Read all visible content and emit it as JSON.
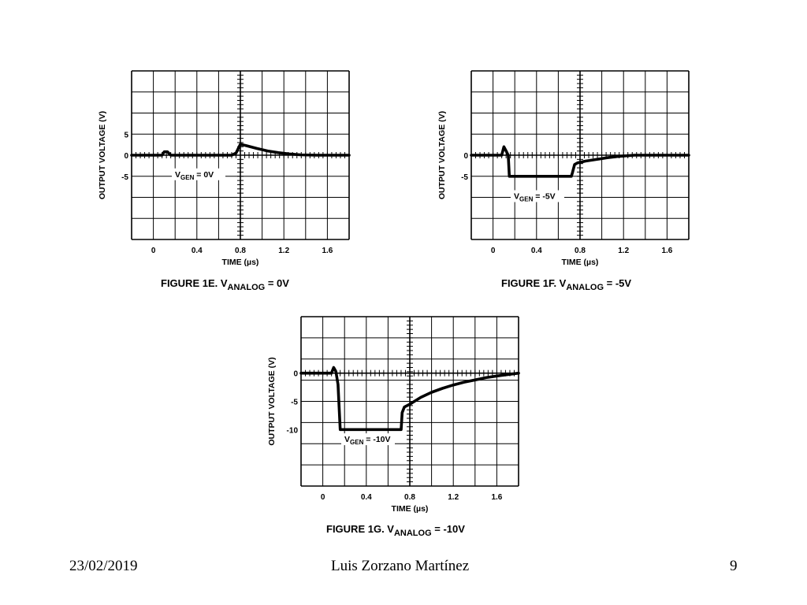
{
  "footer": {
    "date": "23/02/2019",
    "author": "Luis Zorzano Martínez",
    "page_number": "9"
  },
  "chart_data": [
    {
      "type": "line",
      "caption": {
        "prefix": "FIGURE 1E.  V",
        "sub": "ANALOG",
        "suffix": " = 0V"
      },
      "annotation": {
        "main": "V",
        "sub": "GEN",
        "suffix": " = 0V"
      },
      "xlabel": "TIME (µs)",
      "ylabel": "OUTPUT VOLTAGE (V)",
      "x_ticks": [
        "0",
        "0.4",
        "0.8",
        "1.2",
        "1.6"
      ],
      "y_ticks": [
        {
          "value": 5,
          "label": "5"
        },
        {
          "value": 0,
          "label": "0"
        },
        {
          "value": -5,
          "label": "-5"
        }
      ],
      "xlim": [
        -0.2,
        1.8
      ],
      "ylim": [
        -20,
        20
      ],
      "grid": true,
      "series": [
        {
          "x": [
            -0.2,
            0.08,
            0.1,
            0.13,
            0.16,
            0.72,
            0.76,
            0.8,
            0.85,
            0.95,
            1.05,
            1.15,
            1.25,
            1.35,
            1.5,
            1.8
          ],
          "y": [
            0,
            0,
            0.8,
            0.8,
            0,
            0,
            0.5,
            2.6,
            2.3,
            1.6,
            1.0,
            0.6,
            0.3,
            0.1,
            0,
            0
          ]
        }
      ]
    },
    {
      "type": "line",
      "caption": {
        "prefix": "FIGURE 1F.  V",
        "sub": "ANALOG",
        "suffix": " = -5V"
      },
      "annotation": {
        "main": "V",
        "sub": "GEN",
        "suffix": " = -5V"
      },
      "xlabel": "TIME (µs)",
      "ylabel": "OUTPUT VOLTAGE (V)",
      "x_ticks": [
        "0",
        "0.4",
        "0.8",
        "1.2",
        "1.6"
      ],
      "y_ticks": [
        {
          "value": 0,
          "label": "0"
        },
        {
          "value": -5,
          "label": "-5"
        }
      ],
      "xlim": [
        -0.2,
        1.8
      ],
      "ylim": [
        -20,
        20
      ],
      "grid": true,
      "series": [
        {
          "x": [
            -0.2,
            0.08,
            0.1,
            0.12,
            0.14,
            0.15,
            0.72,
            0.73,
            0.75,
            0.78,
            0.85,
            0.95,
            1.05,
            1.15,
            1.3,
            1.8
          ],
          "y": [
            0,
            0,
            2,
            1,
            0,
            -5,
            -5,
            -4.2,
            -2.2,
            -1.8,
            -1.4,
            -1.0,
            -0.6,
            -0.3,
            0,
            0
          ]
        }
      ]
    },
    {
      "type": "line",
      "caption": {
        "prefix": "FIGURE 1G.  V",
        "sub": "ANALOG",
        "suffix": " = -10V"
      },
      "annotation": {
        "main": "V",
        "sub": "GEN",
        "suffix": " = -10V"
      },
      "xlabel": "TIME (µs)",
      "ylabel": "OUTPUT VOLTAGE (V)",
      "x_ticks": [
        "0",
        "0.4",
        "0.8",
        "1.2",
        "1.6"
      ],
      "y_ticks": [
        {
          "value": 0,
          "label": "0"
        },
        {
          "value": -5,
          "label": "-5"
        },
        {
          "value": -10,
          "label": "-10"
        }
      ],
      "xlim": [
        -0.2,
        1.8
      ],
      "ylim": [
        -20,
        10
      ],
      "grid": true,
      "series": [
        {
          "x": [
            -0.2,
            0.08,
            0.1,
            0.12,
            0.14,
            0.16,
            0.72,
            0.73,
            0.75,
            0.8,
            0.9,
            1.0,
            1.1,
            1.2,
            1.3,
            1.4,
            1.5,
            1.6,
            1.8
          ],
          "y": [
            0,
            0,
            1,
            0.3,
            -2,
            -10,
            -10,
            -7,
            -6,
            -5.5,
            -4.3,
            -3.4,
            -2.7,
            -2.1,
            -1.6,
            -1.2,
            -0.8,
            -0.5,
            0
          ]
        }
      ]
    }
  ]
}
